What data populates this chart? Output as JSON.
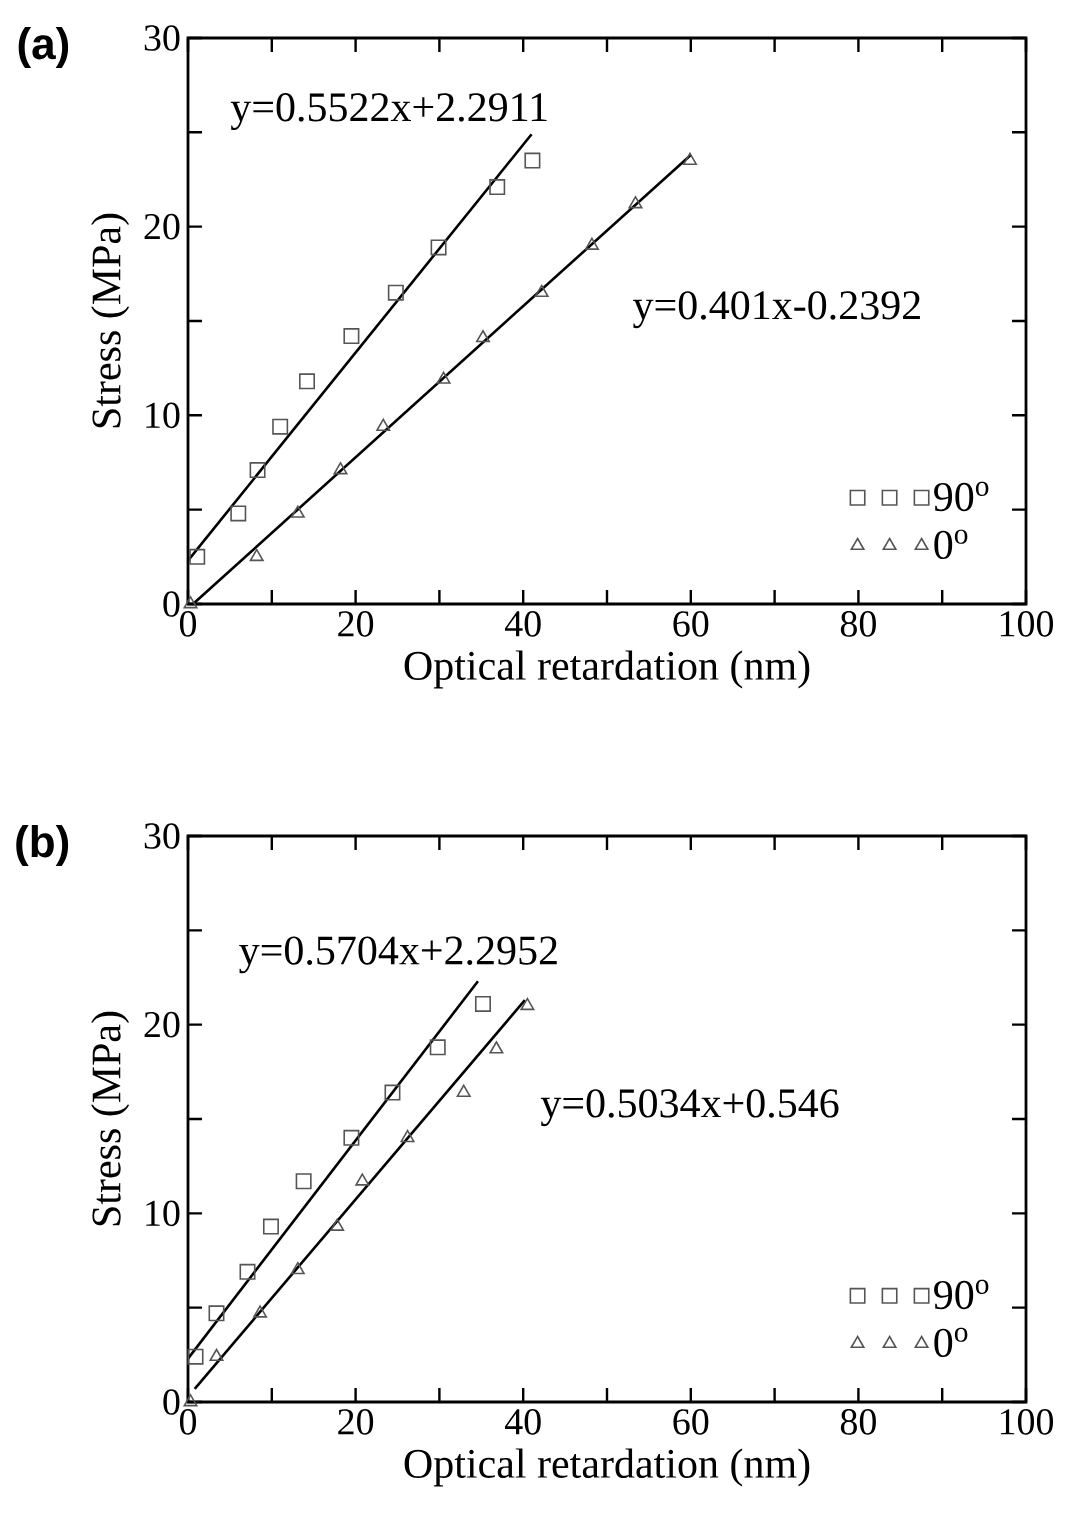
{
  "chart_data": [
    {
      "type": "scatter",
      "title": "(a)",
      "xlabel": "Optical retardation (nm)",
      "ylabel": "Stress (MPa)",
      "xlim": [
        0,
        100
      ],
      "ylim": [
        0,
        30
      ],
      "xticks": [
        0,
        {
          "value": 10,
          "label": null
        },
        20,
        {
          "value": 30,
          "label": null
        },
        40,
        {
          "value": 50,
          "label": null
        },
        60,
        {
          "value": 70,
          "label": null
        },
        80,
        {
          "value": 90,
          "label": null
        },
        100
      ],
      "yticks": [
        0,
        {
          "value": 5,
          "label": null
        },
        10,
        {
          "value": 15,
          "label": null
        },
        20,
        {
          "value": 25,
          "label": null
        },
        30
      ],
      "legend": "bottom right",
      "grid": false,
      "annotations": [
        "y=0.5522x+2.2911",
        "y=0.401x-0.2392"
      ],
      "series": [
        {
          "name": "90$^{o}$",
          "color": "#555555",
          "marker": "square",
          "x": [
            1.1,
            6.0,
            8.3,
            11.0,
            14.2,
            19.5,
            24.8,
            29.9,
            36.9,
            41.1
          ],
          "values": [
            2.5,
            4.8,
            7.1,
            9.4,
            11.8,
            14.2,
            16.5,
            18.9,
            22.1,
            23.5
          ]
        },
        {
          "name": "0$^{o}$",
          "color": "#555555",
          "marker": "triangle",
          "x": [
            0.3,
            8.2,
            13.1,
            18.2,
            23.3,
            30.5,
            35.2,
            42.2,
            48.2,
            53.4,
            59.9
          ],
          "values": [
            0,
            2.5,
            4.8,
            7.1,
            9.4,
            11.9,
            14.1,
            16.5,
            19.0,
            21.2,
            23.5
          ]
        },
        {
          "type": "line",
          "color": "#000000",
          "x": [
            0,
            41
          ],
          "values": [
            2.3,
            24.9
          ]
        },
        {
          "type": "line",
          "color": "#000000",
          "x": [
            0.6,
            60
          ],
          "values": [
            0,
            23.8
          ]
        }
      ]
    },
    {
      "type": "scatter",
      "title": "(b)",
      "xlabel": "Optical retardation (nm)",
      "ylabel": "Stress (MPa)",
      "xlim": [
        0,
        100
      ],
      "ylim": [
        0,
        30
      ],
      "xticks": [
        0,
        {
          "value": 10,
          "label": null
        },
        20,
        {
          "value": 30,
          "label": null
        },
        40,
        {
          "value": 50,
          "label": null
        },
        60,
        {
          "value": 70,
          "label": null
        },
        80,
        {
          "value": 90,
          "label": null
        },
        100
      ],
      "yticks": [
        0,
        {
          "value": 5,
          "label": null
        },
        10,
        {
          "value": 15,
          "label": null
        },
        20,
        {
          "value": 25,
          "label": null
        },
        30
      ],
      "legend": "bottom right",
      "grid": false,
      "annotations": [
        "y=0.5704x+2.2952",
        "y=0.5034x+0.546"
      ],
      "series": [
        {
          "name": "90$^{o}$",
          "color": "#555555",
          "marker": "square",
          "x": [
            0.9,
            3.4,
            7.1,
            9.9,
            13.8,
            19.5,
            24.4,
            29.8,
            35.2
          ],
          "values": [
            2.4,
            4.7,
            6.9,
            9.3,
            11.7,
            14.0,
            16.4,
            18.8,
            21.1
          ]
        },
        {
          "name": "0$^{o}$",
          "color": "#555555",
          "marker": "triangle",
          "x": [
            0.3,
            3.4,
            8.6,
            13.1,
            17.8,
            20.8,
            26.2,
            32.9,
            36.8,
            40.5
          ],
          "values": [
            0,
            2.4,
            4.7,
            7.0,
            9.3,
            11.7,
            14.0,
            16.4,
            18.7,
            21.0
          ]
        },
        {
          "type": "line",
          "color": "#000000",
          "x": [
            0,
            34.6
          ],
          "values": [
            2.3,
            22.3
          ]
        },
        {
          "type": "line",
          "color": "#000000",
          "x": [
            0.8,
            40.2
          ],
          "values": [
            0.7,
            21.3
          ]
        }
      ]
    }
  ]
}
